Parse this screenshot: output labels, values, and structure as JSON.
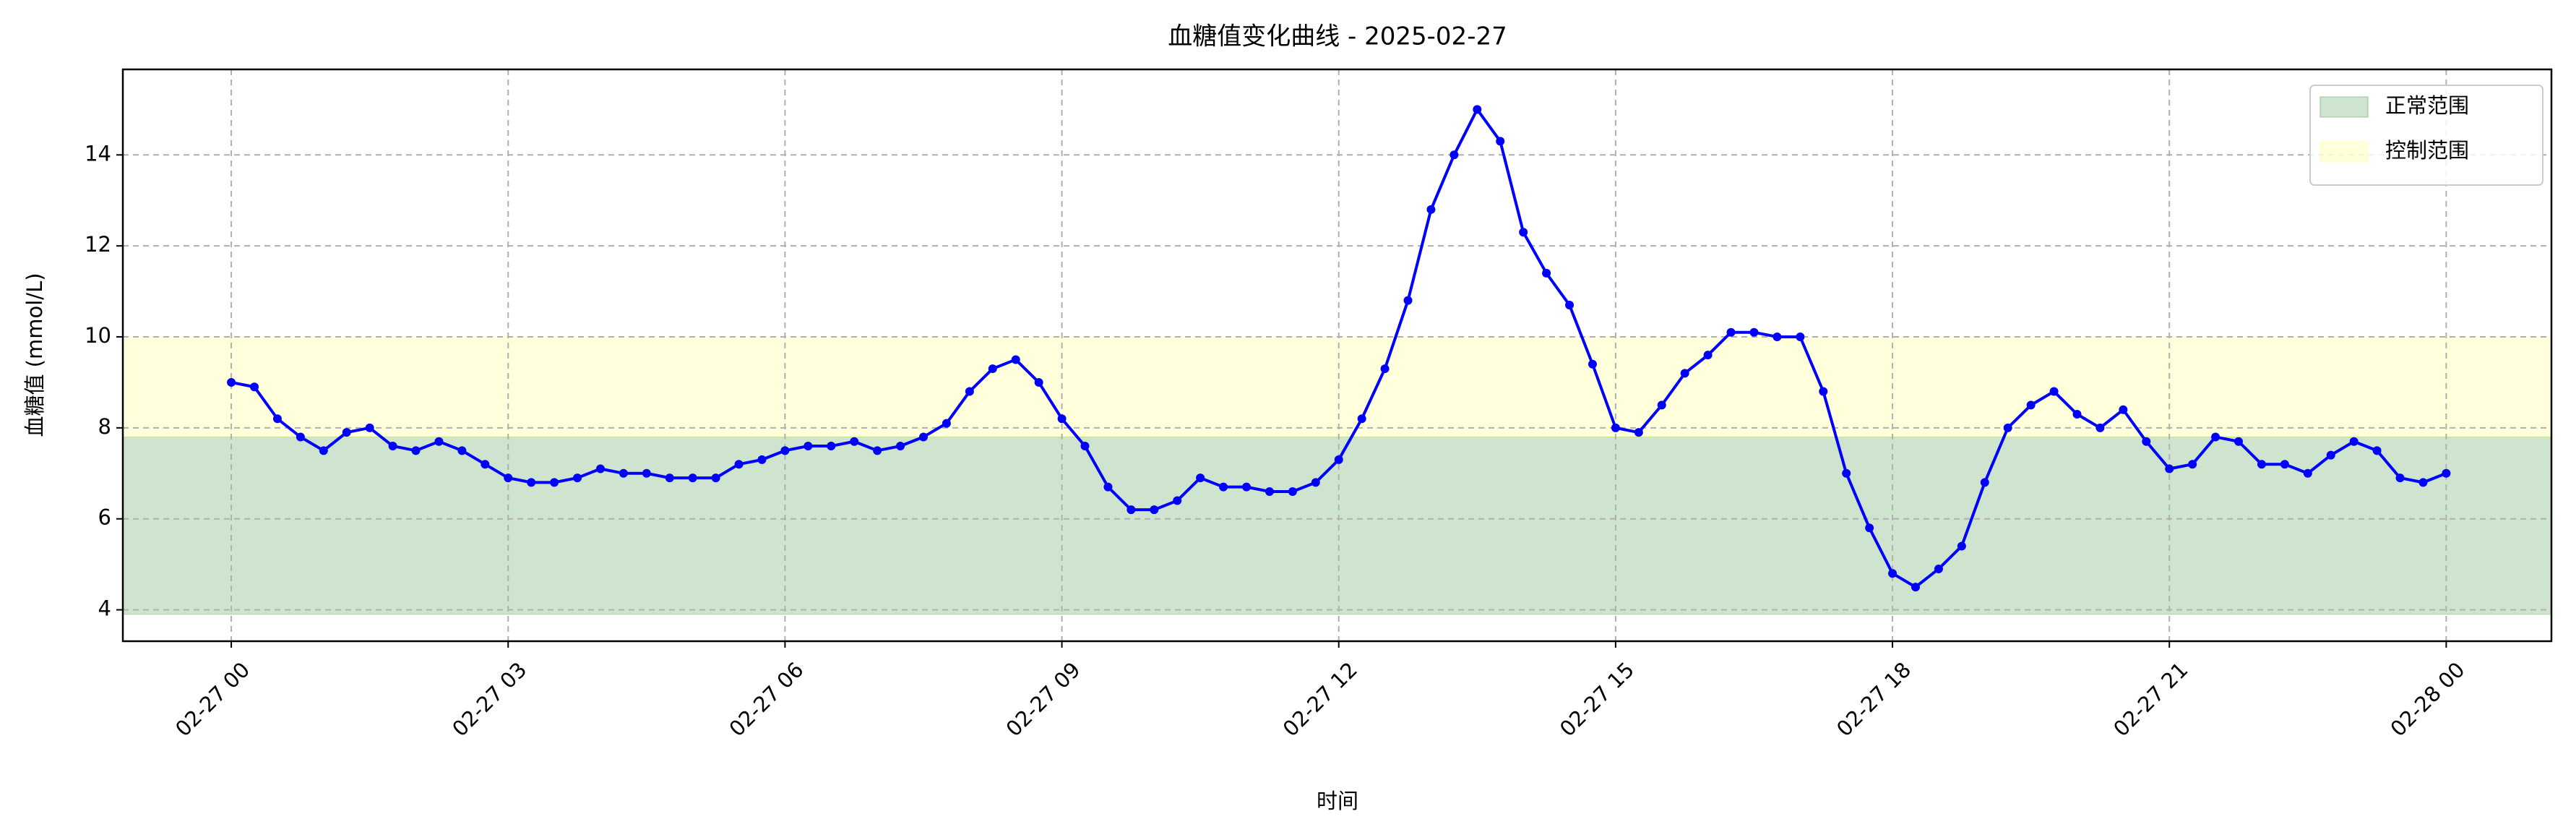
{
  "chart_data": {
    "type": "line",
    "title": "血糖值变化曲线 - 2025-02-27",
    "x_label": "时间",
    "y_label": "血糖值 (mmol/L)",
    "x": [
      0,
      0.25,
      0.5,
      0.75,
      1,
      1.25,
      1.5,
      1.75,
      2,
      2.25,
      2.5,
      2.75,
      3,
      3.25,
      3.5,
      3.75,
      4,
      4.25,
      4.5,
      4.75,
      5,
      5.25,
      5.5,
      5.75,
      6,
      6.25,
      6.5,
      6.75,
      7,
      7.25,
      7.5,
      7.75,
      8,
      8.25,
      8.5,
      8.75,
      9,
      9.25,
      9.5,
      9.75,
      10,
      10.25,
      10.5,
      10.75,
      11,
      11.25,
      11.5,
      11.75,
      12,
      12.25,
      12.5,
      12.75,
      13,
      13.25,
      13.5,
      13.75,
      14,
      14.25,
      14.5,
      14.75,
      15,
      15.25,
      15.5,
      15.75,
      16,
      16.25,
      16.5,
      16.75,
      17,
      17.25,
      17.5,
      17.75,
      18,
      18.25,
      18.5,
      18.75,
      19,
      19.25,
      19.5,
      19.75,
      20,
      20.25,
      20.5,
      20.75,
      21,
      21.25,
      21.5,
      21.75,
      22,
      22.25,
      22.5,
      22.75,
      23,
      23.25,
      23.5,
      23.75,
      24
    ],
    "series": [
      {
        "name": "血糖值",
        "color": "#0000ff",
        "values": [
          9.0,
          8.9,
          8.2,
          7.8,
          7.5,
          7.9,
          8.0,
          7.6,
          7.5,
          7.7,
          7.5,
          7.2,
          6.9,
          6.8,
          6.8,
          6.9,
          7.1,
          7.0,
          7.0,
          6.9,
          6.9,
          6.9,
          7.2,
          7.3,
          7.5,
          7.6,
          7.6,
          7.7,
          7.5,
          7.6,
          7.8,
          8.1,
          8.8,
          9.3,
          9.5,
          9.0,
          8.2,
          7.6,
          6.7,
          6.2,
          6.2,
          6.4,
          6.9,
          6.7,
          6.7,
          6.6,
          6.6,
          6.8,
          7.3,
          8.2,
          9.3,
          10.8,
          12.8,
          14.0,
          15.0,
          14.3,
          12.3,
          11.4,
          10.7,
          9.4,
          8.0,
          7.9,
          8.5,
          9.2,
          9.6,
          10.1,
          10.1,
          10.0,
          10.0,
          8.8,
          7.0,
          5.8,
          4.8,
          4.5,
          4.9,
          5.4,
          6.8,
          8.0,
          8.5,
          8.8,
          8.3,
          8.0,
          8.4,
          7.7,
          7.1,
          7.2,
          7.8,
          7.7,
          7.2,
          7.2,
          7.0,
          7.4,
          7.7,
          7.5,
          6.9,
          6.8,
          7.0
        ]
      }
    ],
    "bands": [
      {
        "name": "正常范围",
        "range": [
          3.9,
          7.8
        ],
        "color": "#2e8b2e"
      },
      {
        "name": "控制范围",
        "range": [
          7.8,
          10
        ],
        "color": "#ffff66"
      }
    ],
    "xlim": [
      -1.175,
      25.14
    ],
    "ylim": [
      3.31,
      15.88
    ],
    "xticks": [
      {
        "value": 0,
        "label": "02-27 00"
      },
      {
        "value": 3,
        "label": "02-27 03"
      },
      {
        "value": 6,
        "label": "02-27 06"
      },
      {
        "value": 9,
        "label": "02-27 09"
      },
      {
        "value": 12,
        "label": "02-27 12"
      },
      {
        "value": 15,
        "label": "02-27 15"
      },
      {
        "value": 18,
        "label": "02-27 18"
      },
      {
        "value": 21,
        "label": "02-27 21"
      },
      {
        "value": 24,
        "label": "02-28 00"
      }
    ],
    "yticks": [
      4,
      6,
      8,
      10,
      12,
      14
    ],
    "grid": true,
    "legend": "upper right"
  }
}
